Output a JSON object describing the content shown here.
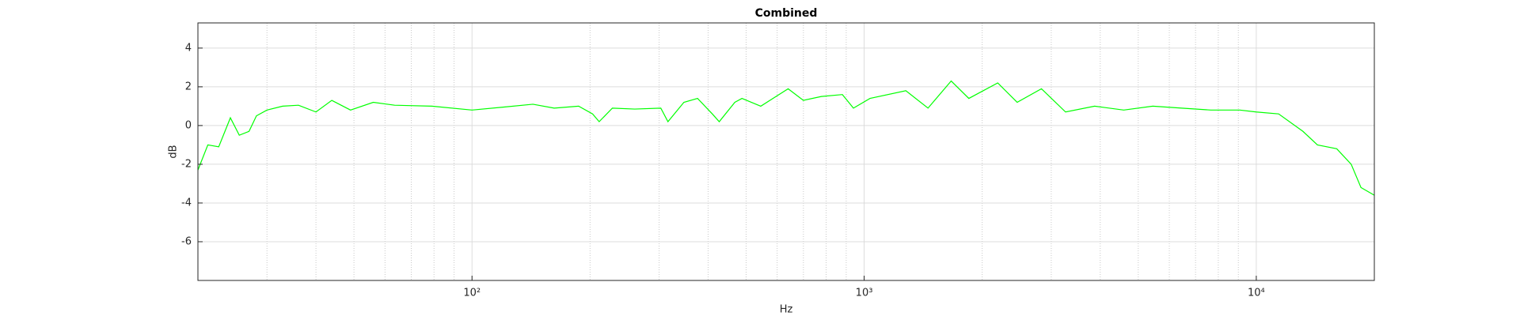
{
  "chart_data": {
    "type": "line",
    "title": "Combined",
    "x_label": "Hz",
    "y_label": "dB",
    "x_scale": "log",
    "grid": true,
    "minor_grid": true,
    "color": "#00ff00",
    "xlim": [
      20,
      20000
    ],
    "ylim": [
      -8,
      5.3
    ],
    "xticks": [
      {
        "value": 100,
        "label": "10²"
      },
      {
        "value": 1000,
        "label": "10³"
      },
      {
        "value": 10000,
        "label": "10⁴"
      }
    ],
    "yticks": [
      -6,
      -4,
      -2,
      0,
      2,
      4
    ],
    "x": [
      20,
      21.2,
      22.6,
      24.2,
      25.5,
      27,
      28.2,
      30,
      32.9,
      36.1,
      40,
      43.9,
      49,
      56,
      63.5,
      79,
      100,
      120,
      143,
      162,
      187,
      203,
      211,
      228,
      260,
      303,
      316,
      347,
      376,
      410,
      427,
      468,
      488,
      545,
      640,
      700,
      778,
      880,
      939,
      1035,
      1277,
      1455,
      1667,
      1849,
      2191,
      2456,
      2832,
      3263,
      3870,
      4592,
      5445,
      6457,
      7656,
      9078,
      10000,
      11400,
      13150,
      14320,
      16040,
      17460,
      18490,
      20000
    ],
    "values": [
      -2.3,
      -1.0,
      -1.1,
      0.4,
      -0.5,
      -0.3,
      0.5,
      0.8,
      1.0,
      1.05,
      0.7,
      1.3,
      0.8,
      1.2,
      1.05,
      1.0,
      0.8,
      0.95,
      1.1,
      0.9,
      1.0,
      0.6,
      0.2,
      0.9,
      0.85,
      0.9,
      0.2,
      1.2,
      1.4,
      0.6,
      0.2,
      1.2,
      1.4,
      1.0,
      1.9,
      1.3,
      1.5,
      1.6,
      0.9,
      1.4,
      1.8,
      0.9,
      2.3,
      1.4,
      2.2,
      1.2,
      1.9,
      0.7,
      1.0,
      0.8,
      1.0,
      0.9,
      0.8,
      0.8,
      0.7,
      0.6,
      -0.3,
      -1.0,
      -1.2,
      -2.0,
      -3.2,
      -3.6
    ]
  }
}
